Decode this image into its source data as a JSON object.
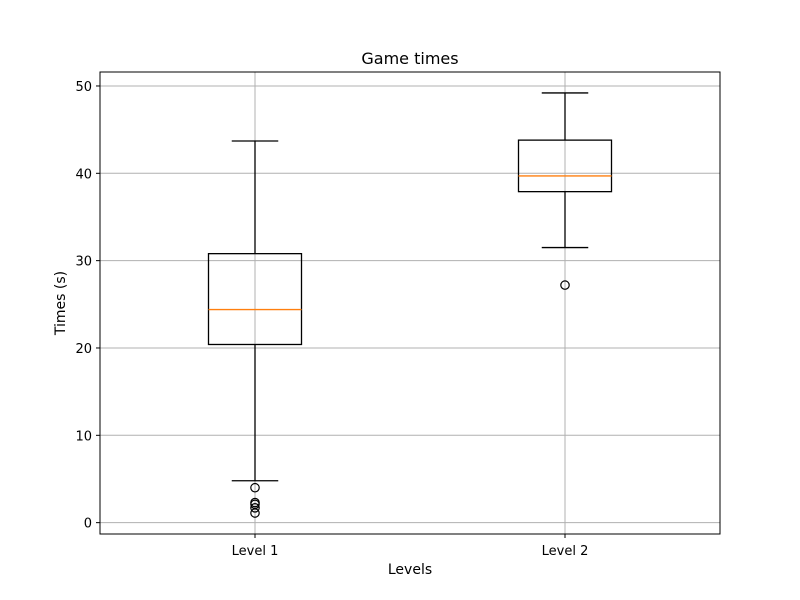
{
  "chart_data": {
    "type": "box",
    "title": "Game times",
    "xlabel": "Levels",
    "ylabel": "Times (s)",
    "ylim": [
      -1.3,
      51.6
    ],
    "yticks": [
      0,
      10,
      20,
      30,
      40,
      50
    ],
    "grid": true,
    "categories": [
      "Level 1",
      "Level 2"
    ],
    "boxes": [
      {
        "category": "Level 1",
        "whisker_low": 4.8,
        "q1": 20.4,
        "median": 24.4,
        "q3": 30.8,
        "whisker_high": 43.7,
        "outliers": [
          4.0,
          2.3,
          2.1,
          1.7,
          1.1
        ]
      },
      {
        "category": "Level 2",
        "whisker_low": 31.5,
        "q1": 37.9,
        "median": 39.7,
        "q3": 43.8,
        "whisker_high": 49.2,
        "outliers": [
          27.2
        ]
      }
    ],
    "colors": {
      "box": "#000000",
      "median": "#ff7f0e",
      "grid": "#b0b0b0"
    }
  }
}
